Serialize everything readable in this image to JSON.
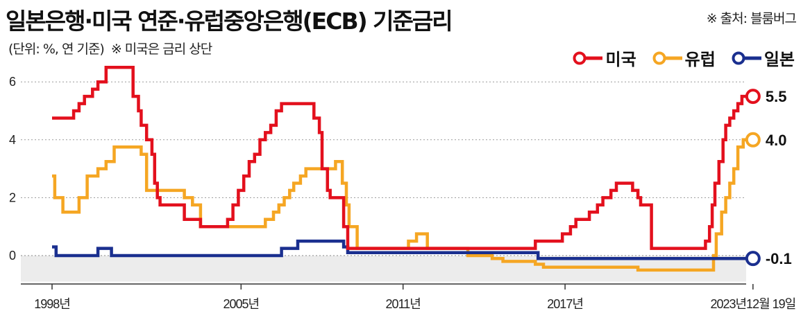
{
  "header": {
    "title": "일본은행·미국 연준·유럽중앙은행(ECB) 기준금리",
    "source": "※ 출처: 블룸버그",
    "subtitle_unit": "(단위: %, 연 기준)",
    "subtitle_note": "※ 미국은 금리 상단"
  },
  "legend": [
    {
      "label": "미국",
      "color": "#e3101d"
    },
    {
      "label": "유럽",
      "color": "#f5a623"
    },
    {
      "label": "일본",
      "color": "#1a2f8f"
    }
  ],
  "chart_data": {
    "type": "line",
    "title": "일본은행·미국 연준·유럽중앙은행(ECB) 기준금리",
    "xlabel": "",
    "ylabel": "%",
    "ylim": [
      -0.9,
      6.8
    ],
    "yticks": [
      0,
      2,
      4,
      6
    ],
    "xticks": [
      "1998년",
      "2005년",
      "2011년",
      "2017년",
      "2023년12월 19일"
    ],
    "xtick_years": [
      1998,
      2005,
      2011,
      2017,
      2023.96
    ],
    "step": true,
    "end_labels": {
      "미국": "5.5",
      "유럽": "4.0",
      "일본": "-0.1"
    },
    "series": [
      {
        "name": "미국",
        "color": "#e3101d",
        "points": [
          [
            1998.0,
            4.75
          ],
          [
            1998.6,
            4.75
          ],
          [
            1998.8,
            5.0
          ],
          [
            1999.0,
            5.25
          ],
          [
            1999.2,
            5.5
          ],
          [
            1999.5,
            5.75
          ],
          [
            1999.7,
            6.0
          ],
          [
            2000.0,
            6.5
          ],
          [
            2000.5,
            6.5
          ],
          [
            2001.0,
            5.5
          ],
          [
            2001.2,
            5.0
          ],
          [
            2001.3,
            4.5
          ],
          [
            2001.5,
            4.0
          ],
          [
            2001.7,
            3.5
          ],
          [
            2001.8,
            2.5
          ],
          [
            2001.9,
            2.0
          ],
          [
            2002.0,
            1.75
          ],
          [
            2002.8,
            1.75
          ],
          [
            2002.9,
            1.25
          ],
          [
            2003.5,
            1.0
          ],
          [
            2004.5,
            1.25
          ],
          [
            2004.7,
            1.75
          ],
          [
            2004.9,
            2.25
          ],
          [
            2005.1,
            2.75
          ],
          [
            2005.3,
            3.25
          ],
          [
            2005.5,
            3.5
          ],
          [
            2005.7,
            4.0
          ],
          [
            2005.9,
            4.25
          ],
          [
            2006.1,
            4.5
          ],
          [
            2006.3,
            5.0
          ],
          [
            2006.5,
            5.25
          ],
          [
            2007.6,
            5.25
          ],
          [
            2007.7,
            4.75
          ],
          [
            2007.9,
            4.25
          ],
          [
            2008.0,
            3.0
          ],
          [
            2008.2,
            2.25
          ],
          [
            2008.3,
            2.0
          ],
          [
            2008.8,
            1.0
          ],
          [
            2008.95,
            0.25
          ],
          [
            2015.9,
            0.5
          ],
          [
            2016.9,
            0.75
          ],
          [
            2017.2,
            1.0
          ],
          [
            2017.4,
            1.25
          ],
          [
            2017.9,
            1.5
          ],
          [
            2018.2,
            1.75
          ],
          [
            2018.4,
            2.0
          ],
          [
            2018.7,
            2.25
          ],
          [
            2018.9,
            2.5
          ],
          [
            2019.5,
            2.25
          ],
          [
            2019.7,
            2.0
          ],
          [
            2019.8,
            1.75
          ],
          [
            2020.2,
            0.25
          ],
          [
            2022.2,
            0.5
          ],
          [
            2022.35,
            1.0
          ],
          [
            2022.45,
            1.75
          ],
          [
            2022.55,
            2.5
          ],
          [
            2022.7,
            3.25
          ],
          [
            2022.85,
            4.0
          ],
          [
            2022.95,
            4.5
          ],
          [
            2023.1,
            4.75
          ],
          [
            2023.25,
            5.0
          ],
          [
            2023.4,
            5.25
          ],
          [
            2023.55,
            5.5
          ],
          [
            2023.96,
            5.5
          ]
        ]
      },
      {
        "name": "유럽",
        "color": "#f5a623",
        "points": [
          [
            1998.0,
            2.75
          ],
          [
            1998.1,
            2.0
          ],
          [
            1998.4,
            1.5
          ],
          [
            1999.0,
            2.0
          ],
          [
            1999.3,
            2.75
          ],
          [
            1999.7,
            3.0
          ],
          [
            2000.0,
            3.25
          ],
          [
            2000.3,
            3.75
          ],
          [
            2000.9,
            3.75
          ],
          [
            2001.3,
            3.5
          ],
          [
            2001.5,
            2.25
          ],
          [
            2002.4,
            2.25
          ],
          [
            2002.9,
            2.0
          ],
          [
            2003.2,
            1.75
          ],
          [
            2003.5,
            1.0
          ],
          [
            2005.9,
            1.25
          ],
          [
            2006.2,
            1.5
          ],
          [
            2006.4,
            1.75
          ],
          [
            2006.6,
            2.0
          ],
          [
            2006.8,
            2.25
          ],
          [
            2006.95,
            2.5
          ],
          [
            2007.2,
            2.75
          ],
          [
            2007.4,
            3.0
          ],
          [
            2008.5,
            3.25
          ],
          [
            2008.75,
            2.5
          ],
          [
            2008.9,
            1.75
          ],
          [
            2009.0,
            1.0
          ],
          [
            2009.3,
            0.25
          ],
          [
            2011.2,
            0.5
          ],
          [
            2011.5,
            0.75
          ],
          [
            2011.9,
            0.25
          ],
          [
            2013.4,
            0.0
          ],
          [
            2014.3,
            -0.1
          ],
          [
            2014.7,
            -0.2
          ],
          [
            2015.9,
            -0.3
          ],
          [
            2016.2,
            -0.4
          ],
          [
            2019.7,
            -0.5
          ],
          [
            2022.5,
            0.0
          ],
          [
            2022.6,
            0.75
          ],
          [
            2022.8,
            1.5
          ],
          [
            2022.95,
            2.0
          ],
          [
            2023.1,
            2.5
          ],
          [
            2023.25,
            3.0
          ],
          [
            2023.4,
            3.75
          ],
          [
            2023.6,
            4.0
          ],
          [
            2023.96,
            4.0
          ]
        ]
      },
      {
        "name": "일본",
        "color": "#1a2f8f",
        "points": [
          [
            1998.0,
            0.3
          ],
          [
            1998.15,
            0.0
          ],
          [
            1999.7,
            0.25
          ],
          [
            2000.2,
            0.0
          ],
          [
            2001.0,
            0.0
          ],
          [
            2005.0,
            0.0
          ],
          [
            2006.5,
            0.25
          ],
          [
            2007.1,
            0.5
          ],
          [
            2008.8,
            0.3
          ],
          [
            2008.95,
            0.1
          ],
          [
            2016.0,
            -0.1
          ],
          [
            2023.96,
            -0.1
          ]
        ]
      }
    ]
  }
}
